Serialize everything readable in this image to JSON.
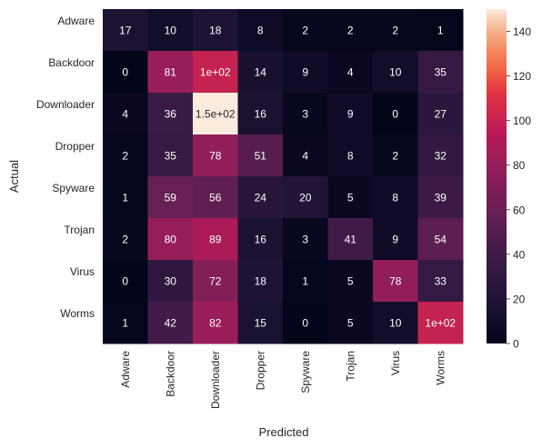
{
  "chart_data": {
    "type": "heatmap",
    "xlabel": "Predicted",
    "ylabel": "Actual",
    "x_categories": [
      "Adware",
      "Backdoor",
      "Downloader",
      "Dropper",
      "Spyware",
      "Trojan",
      "Virus",
      "Worms"
    ],
    "y_categories": [
      "Adware",
      "Backdoor",
      "Downloader",
      "Dropper",
      "Spyware",
      "Trojan",
      "Virus",
      "Worms"
    ],
    "values": [
      [
        17,
        10,
        18,
        8,
        2,
        2,
        2,
        1
      ],
      [
        0,
        81,
        100,
        14,
        9,
        4,
        10,
        35
      ],
      [
        4,
        36,
        150,
        16,
        3,
        9,
        0,
        27
      ],
      [
        2,
        35,
        78,
        51,
        4,
        8,
        2,
        32
      ],
      [
        1,
        59,
        56,
        24,
        20,
        5,
        8,
        39
      ],
      [
        2,
        80,
        89,
        16,
        3,
        41,
        9,
        54
      ],
      [
        0,
        30,
        72,
        18,
        1,
        5,
        78,
        33
      ],
      [
        1,
        42,
        82,
        15,
        0,
        5,
        10,
        100
      ]
    ],
    "cell_labels": [
      [
        "17",
        "10",
        "18",
        "8",
        "2",
        "2",
        "2",
        "1"
      ],
      [
        "0",
        "81",
        "1e+02",
        "14",
        "9",
        "4",
        "10",
        "35"
      ],
      [
        "4",
        "36",
        "1.5e+02",
        "16",
        "3",
        "9",
        "0",
        "27"
      ],
      [
        "2",
        "35",
        "78",
        "51",
        "4",
        "8",
        "2",
        "32"
      ],
      [
        "1",
        "59",
        "56",
        "24",
        "20",
        "5",
        "8",
        "39"
      ],
      [
        "2",
        "80",
        "89",
        "16",
        "3",
        "41",
        "9",
        "54"
      ],
      [
        "0",
        "30",
        "72",
        "18",
        "1",
        "5",
        "78",
        "33"
      ],
      [
        "1",
        "42",
        "82",
        "15",
        "0",
        "5",
        "10",
        "1e+02"
      ]
    ],
    "colorbar": {
      "min": 0,
      "max": 150,
      "ticks": [
        0,
        20,
        40,
        60,
        80,
        100,
        120,
        140
      ],
      "colormap": "rocket"
    }
  }
}
